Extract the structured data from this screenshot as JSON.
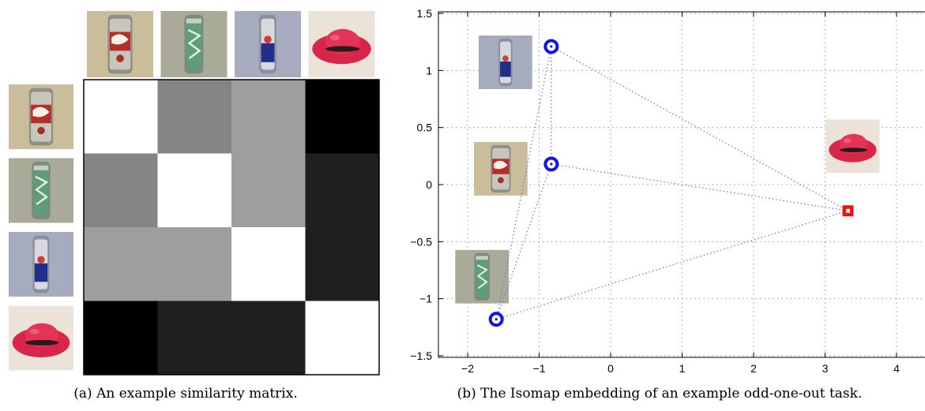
{
  "panel_a": {
    "caption": "(a) An example similarity matrix."
  },
  "panel_b": {
    "caption": "(b) The Isomap embedding of an example odd-one-out task."
  },
  "palette": {
    "marker_blue": "#1414e6",
    "marker_red": "#ee1111",
    "edge_blue": "#6a6af2",
    "grid": "#9a9a9a",
    "hat": "#d8264b",
    "can_beige": "#c9bd9c",
    "can_green": "#5e9c7a",
    "can_navy": "#1f2f8a"
  },
  "chart_data": [
    {
      "type": "heatmap",
      "title": "",
      "items": [
        "coke-can",
        "sprite-can",
        "redbull-can",
        "red-hat"
      ],
      "item_icons": [
        "coke-can-icon",
        "sprite-can-icon",
        "redbull-can-icon",
        "red-hat-icon"
      ],
      "values": [
        [
          1.0,
          0.52,
          0.62,
          0.0
        ],
        [
          0.52,
          1.0,
          0.62,
          0.12
        ],
        [
          0.62,
          0.62,
          1.0,
          0.12
        ],
        [
          0.0,
          0.12,
          0.12,
          1.0
        ]
      ],
      "scale": "white = 1 (identical), black = 0"
    },
    {
      "type": "scatter",
      "title": "",
      "xlabel": "",
      "ylabel": "",
      "xlim": [
        -2.4,
        4.4
      ],
      "ylim": [
        -1.5,
        1.5
      ],
      "xticks": [
        -2,
        -1,
        0,
        1,
        2,
        3,
        4
      ],
      "yticks": [
        1.5,
        1,
        0.5,
        0,
        -0.5,
        -1,
        -1.5
      ],
      "grid": true,
      "points": [
        {
          "item": "redbull-can",
          "x": -0.83,
          "y": 1.21,
          "marker": "circle",
          "icon": "redbull-can-icon"
        },
        {
          "item": "coke-can",
          "x": -0.83,
          "y": 0.18,
          "marker": "circle",
          "icon": "coke-can-icon"
        },
        {
          "item": "sprite-can",
          "x": -1.6,
          "y": -1.18,
          "marker": "circle",
          "icon": "sprite-can-icon"
        },
        {
          "item": "red-hat",
          "x": 3.32,
          "y": -0.23,
          "marker": "square",
          "icon": "red-hat-icon"
        }
      ],
      "edges": [
        [
          0,
          1
        ],
        [
          0,
          2
        ],
        [
          1,
          2
        ],
        [
          0,
          3
        ],
        [
          1,
          3
        ],
        [
          2,
          3
        ]
      ]
    }
  ]
}
